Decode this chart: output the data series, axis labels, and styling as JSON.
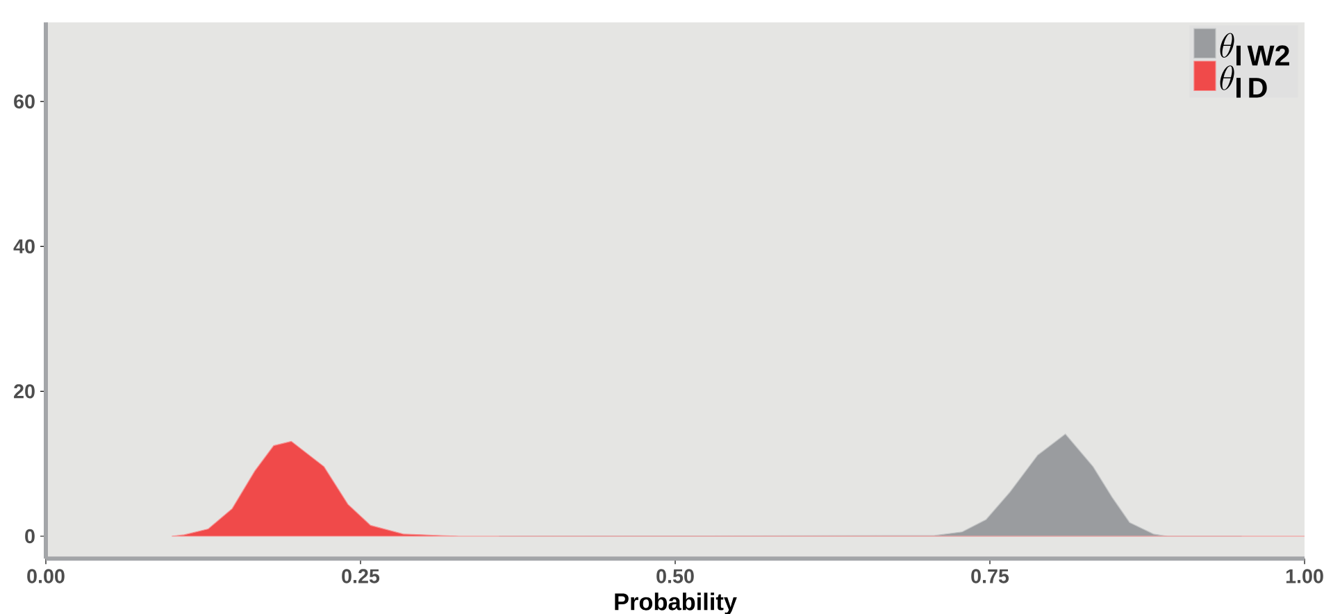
{
  "chart_data": {
    "type": "area",
    "xlabel": "Probability",
    "xlim": [
      0,
      1
    ],
    "ylim": [
      -3.1,
      70.9
    ],
    "xticks": [
      {
        "value": 0,
        "label": "0.00"
      },
      {
        "value": 0.25,
        "label": "0.25"
      },
      {
        "value": 0.5,
        "label": "0.50"
      },
      {
        "value": 0.75,
        "label": "0.75"
      },
      {
        "value": 1,
        "label": "1.00"
      }
    ],
    "yticks": [
      0,
      20,
      40,
      60
    ],
    "legend": "top right",
    "series": [
      {
        "name": "\\theta_{\\mathbf{I\\,W2}}",
        "color": "#9a9c9f",
        "x": [
          0.36,
          0.706,
          0.728,
          0.747,
          0.766,
          0.788,
          0.81,
          0.832,
          0.847,
          0.861,
          0.88,
          0.891,
          0.95
        ],
        "values": [
          0,
          0.1,
          0.6,
          2.3,
          6.1,
          11.2,
          14.1,
          9.6,
          5.4,
          1.9,
          0.3,
          0,
          0
        ]
      },
      {
        "name": "\\theta_{\\mathbf{I\\,D}}",
        "color": "#f04a4a",
        "x": [
          0.1,
          0.11,
          0.129,
          0.148,
          0.166,
          0.181,
          0.195,
          0.221,
          0.24,
          0.258,
          0.284,
          0.328,
          1.0
        ],
        "values": [
          0,
          0.2,
          1.0,
          3.8,
          9.0,
          12.5,
          13.1,
          9.6,
          4.4,
          1.5,
          0.3,
          0,
          0
        ]
      }
    ]
  }
}
